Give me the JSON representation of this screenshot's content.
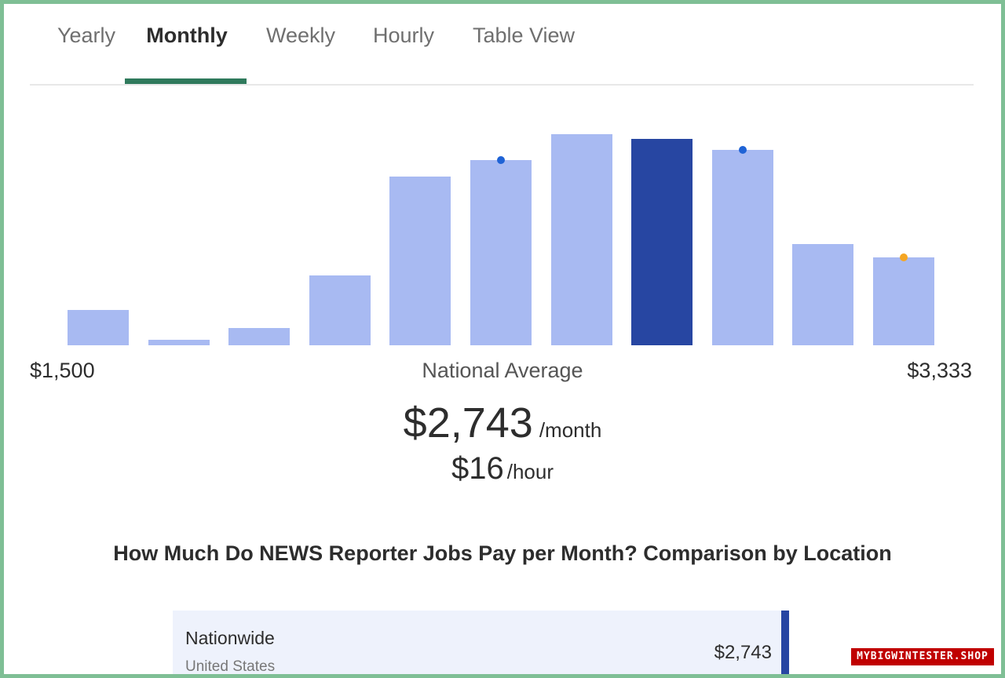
{
  "tabs": [
    {
      "label": "Yearly",
      "active": false
    },
    {
      "label": "Monthly",
      "active": true
    },
    {
      "label": "Weekly",
      "active": false
    },
    {
      "label": "Hourly",
      "active": false
    },
    {
      "label": "Table View",
      "active": false
    }
  ],
  "colors": {
    "accent": "#2f7a5c",
    "bar": "#a8baf2",
    "bar_highlight": "#2746a2",
    "marker_blue": "#1f63d6",
    "marker_orange": "#f5a623",
    "frame": "#7fbf95"
  },
  "chart_data": {
    "type": "bar",
    "values": [
      45,
      7,
      22,
      89,
      215,
      236,
      269,
      263,
      249,
      129,
      112
    ],
    "highlight_index": 7,
    "markers": [
      {
        "bar": 5,
        "color": "blue"
      },
      {
        "bar": 8,
        "color": "blue"
      },
      {
        "bar": 10,
        "color": "orange"
      }
    ]
  },
  "range": {
    "min": "$1,500",
    "max": "$3,333",
    "center_label": "National Average"
  },
  "average": {
    "monthly": "$2,743",
    "monthly_unit": "/month",
    "hourly": "$16",
    "hourly_unit": "/hour"
  },
  "section_heading": "How Much Do NEWS Reporter Jobs Pay per Month? Comparison by Location",
  "location": {
    "name": "Nationwide",
    "sub": "United States",
    "value": "$2,743"
  },
  "watermark": "MYBIGWINTESTER.SHOP"
}
